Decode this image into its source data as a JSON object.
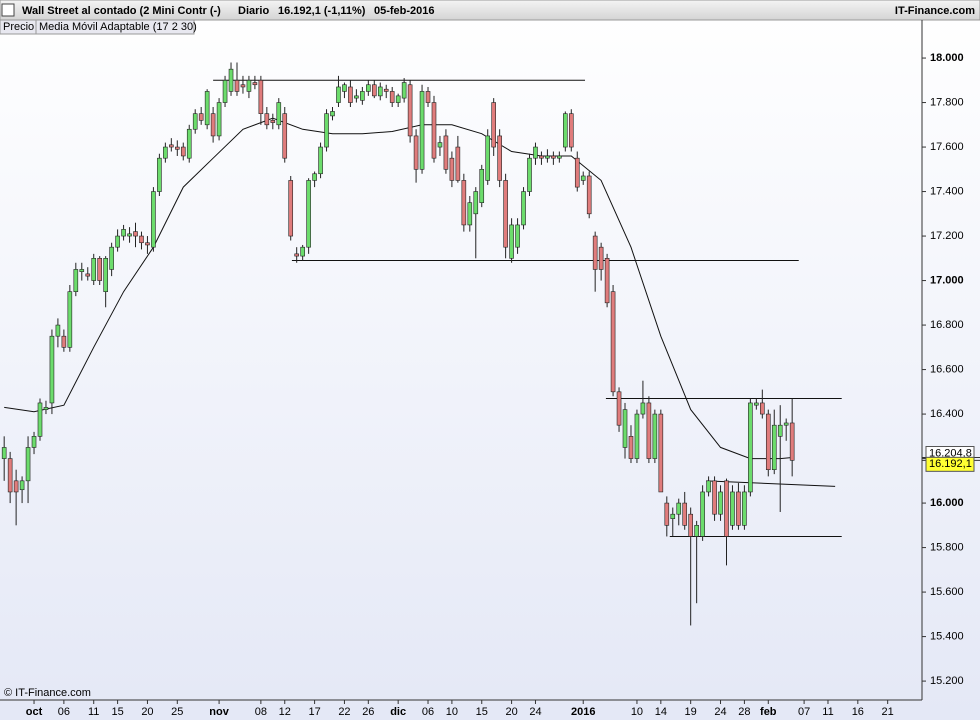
{
  "header": {
    "title": "Wall Street al contado (2 Mini Contr (-)",
    "period": "Diario",
    "last": "16.192,1 (-1,11%)",
    "date": "05-feb-2016",
    "brand": "IT-Finance.com"
  },
  "chart_data": {
    "type": "candlestick",
    "source": "© IT-Finance.com",
    "xlim": [
      -5.7,
      148.75
    ],
    "ylim": [
      15115,
      18171
    ],
    "xticks": [
      {
        "value": 0,
        "label": "oct"
      },
      {
        "value": 5,
        "label": "06"
      },
      {
        "value": 10,
        "label": "11"
      },
      {
        "value": 14,
        "label": "15"
      },
      {
        "value": 19,
        "label": "20"
      },
      {
        "value": 24,
        "label": "25"
      },
      {
        "value": 31,
        "label": "nov"
      },
      {
        "value": 38,
        "label": "08"
      },
      {
        "value": 42,
        "label": "12"
      },
      {
        "value": 47,
        "label": "17"
      },
      {
        "value": 52,
        "label": "22"
      },
      {
        "value": 56,
        "label": "26"
      },
      {
        "value": 61,
        "label": "dic"
      },
      {
        "value": 66,
        "label": "06"
      },
      {
        "value": 70,
        "label": "10"
      },
      {
        "value": 75,
        "label": "15"
      },
      {
        "value": 80,
        "label": "20"
      },
      {
        "value": 84,
        "label": "24"
      },
      {
        "value": 92,
        "label": "2016"
      },
      {
        "value": 101,
        "label": "10"
      },
      {
        "value": 105,
        "label": "14"
      },
      {
        "value": 110,
        "label": "19"
      },
      {
        "value": 115,
        "label": "24"
      },
      {
        "value": 119,
        "label": "28"
      },
      {
        "value": 123,
        "label": "feb"
      },
      {
        "value": 129,
        "label": "07"
      },
      {
        "value": 133,
        "label": "11"
      },
      {
        "value": 138,
        "label": "16"
      },
      {
        "value": 143,
        "label": "21"
      }
    ],
    "yticks": [
      {
        "value": 15200,
        "label": "15.200"
      },
      {
        "value": 15400,
        "label": "15.400"
      },
      {
        "value": 15600,
        "label": "15.600"
      },
      {
        "value": 15800,
        "label": "15.800"
      },
      {
        "value": 16000,
        "label": "16.000"
      },
      {
        "value": 16200,
        "label": "16.200"
      },
      {
        "value": 16400,
        "label": "16.400"
      },
      {
        "value": 16600,
        "label": "16.600"
      },
      {
        "value": 16800,
        "label": "16.800"
      },
      {
        "value": 17000,
        "label": "17.000"
      },
      {
        "value": 17200,
        "label": "17.200"
      },
      {
        "value": 17400,
        "label": "17.400"
      },
      {
        "value": 17600,
        "label": "17.600"
      },
      {
        "value": 17800,
        "label": "17.800"
      },
      {
        "value": 18000,
        "label": "18.000"
      }
    ],
    "candles": {
      "name": "Precio",
      "up_color": "#6cdc6c",
      "down_color": "#e07c7c",
      "x": [
        -5,
        -4,
        -3,
        -2,
        -1,
        0,
        1,
        2,
        3,
        4,
        5,
        6,
        7,
        8,
        9,
        10,
        11,
        12,
        13,
        14,
        15,
        16,
        17,
        18,
        19,
        20,
        21,
        22,
        23,
        24,
        25,
        26,
        27,
        28,
        29,
        30,
        31,
        32,
        33,
        34,
        35,
        36,
        37,
        38,
        39,
        40,
        41,
        42,
        43,
        44,
        45,
        46,
        47,
        48,
        49,
        50,
        51,
        52,
        53,
        54,
        55,
        56,
        57,
        58,
        59,
        60,
        61,
        62,
        63,
        64,
        65,
        66,
        67,
        68,
        69,
        70,
        71,
        72,
        73,
        74,
        75,
        76,
        77,
        78,
        79,
        80,
        81,
        82,
        83,
        84,
        85,
        86,
        87,
        88,
        89,
        90,
        91,
        92,
        93,
        94,
        95,
        96,
        97,
        98,
        99,
        100,
        101,
        102,
        103,
        104,
        105,
        106,
        107,
        108,
        109,
        110,
        111,
        112,
        113,
        114,
        115,
        116,
        117,
        118,
        119,
        120,
        121,
        122,
        123,
        124,
        125,
        126,
        127
      ],
      "open": [
        16200,
        16200,
        16100,
        16060,
        16100,
        16250,
        16300,
        16420,
        16450,
        16750,
        16750,
        16700,
        16950,
        17040,
        17030,
        17000,
        17100,
        16950,
        17050,
        17150,
        17200,
        17200,
        17220,
        17200,
        17170,
        17150,
        17400,
        17550,
        17610,
        17600,
        17600,
        17550,
        17680,
        17750,
        17700,
        17750,
        17650,
        17800,
        17850,
        17900,
        17880,
        17850,
        17890,
        17900,
        17750,
        17720,
        17700,
        17750,
        17450,
        17120,
        17110,
        17150,
        17450,
        17480,
        17600,
        17740,
        17800,
        17850,
        17870,
        17820,
        17810,
        17850,
        17880,
        17830,
        17860,
        17850,
        17800,
        17820,
        17880,
        17650,
        17500,
        17850,
        17800,
        17600,
        17650,
        17550,
        17600,
        17450,
        17250,
        17300,
        17350,
        17450,
        17800,
        17650,
        17450,
        17100,
        17150,
        17250,
        17400,
        17550,
        17560,
        17550,
        17560,
        17550,
        17600,
        17750,
        17550,
        17450,
        17470,
        17200,
        17150,
        17100,
        16950,
        16500,
        16250,
        16300,
        16200,
        16400,
        16450,
        16200,
        16400,
        16000,
        15930,
        15950,
        16000,
        15950,
        15850,
        15850,
        16050,
        16100,
        15950,
        16100,
        15900,
        16050,
        15900,
        16050,
        16440,
        16450,
        16400,
        16150,
        16300,
        16350,
        16360
      ],
      "high": [
        16300,
        16230,
        16150,
        16120,
        16300,
        16320,
        16470,
        16460,
        16780,
        16830,
        16780,
        16980,
        17080,
        17080,
        17060,
        17120,
        17110,
        17110,
        17170,
        17230,
        17250,
        17240,
        17260,
        17220,
        17200,
        17420,
        17570,
        17620,
        17640,
        17630,
        17620,
        17700,
        17770,
        17780,
        17860,
        17780,
        17820,
        17920,
        17980,
        17980,
        17920,
        17920,
        17920,
        17920,
        17780,
        17750,
        17820,
        17780,
        17470,
        17150,
        17160,
        17460,
        17490,
        17620,
        17770,
        17780,
        17920,
        17890,
        17900,
        17860,
        17870,
        17900,
        17900,
        17890,
        17880,
        17870,
        17840,
        17910,
        17900,
        17680,
        17880,
        17870,
        17830,
        17650,
        17680,
        17580,
        17650,
        17480,
        17380,
        17420,
        17520,
        17680,
        17820,
        17680,
        17480,
        17280,
        17280,
        17420,
        17570,
        17620,
        17580,
        17590,
        17580,
        17580,
        17760,
        17770,
        17580,
        17490,
        17490,
        17220,
        17170,
        17120,
        16980,
        16520,
        16450,
        16350,
        16420,
        16550,
        16480,
        16420,
        16420,
        16030,
        15980,
        16020,
        16050,
        15980,
        15920,
        16080,
        16120,
        16120,
        16080,
        16110,
        16080,
        16090,
        16080,
        16470,
        16470,
        16510,
        16420,
        16420,
        16440,
        16380,
        16470
      ],
      "low": [
        16100,
        16000,
        15900,
        16000,
        16000,
        16220,
        16280,
        16400,
        16400,
        16700,
        16680,
        16680,
        16930,
        17000,
        17000,
        16980,
        16980,
        16880,
        17020,
        17130,
        17180,
        17170,
        17150,
        17140,
        17120,
        17130,
        17380,
        17530,
        17580,
        17560,
        17540,
        17530,
        17660,
        17700,
        17680,
        17620,
        17630,
        17780,
        17830,
        17830,
        17840,
        17820,
        17860,
        17700,
        17680,
        17680,
        17680,
        17530,
        17180,
        17080,
        17090,
        17120,
        17420,
        17460,
        17580,
        17720,
        17780,
        17820,
        17780,
        17800,
        17790,
        17830,
        17820,
        17810,
        17820,
        17780,
        17780,
        17800,
        17620,
        17440,
        17480,
        17780,
        17530,
        17560,
        17480,
        17420,
        17440,
        17220,
        17220,
        17100,
        17330,
        17430,
        17560,
        17420,
        17100,
        17080,
        17120,
        17230,
        17380,
        17520,
        17520,
        17530,
        17520,
        17530,
        17580,
        17580,
        17400,
        17430,
        17280,
        16950,
        17000,
        16880,
        16480,
        16320,
        16200,
        16180,
        16180,
        16380,
        16180,
        16180,
        16050,
        15850,
        15850,
        15900,
        15880,
        15450,
        15550,
        15830,
        16030,
        15920,
        15920,
        15720,
        15880,
        15880,
        15880,
        16030,
        16420,
        16380,
        16120,
        16130,
        15960,
        16280,
        16120
      ],
      "close": [
        16250,
        16050,
        16050,
        16100,
        16250,
        16300,
        16450,
        16430,
        16750,
        16800,
        16700,
        16950,
        17050,
        17050,
        17020,
        17100,
        17000,
        17100,
        17150,
        17200,
        17230,
        17210,
        17200,
        17170,
        17160,
        17400,
        17550,
        17600,
        17600,
        17590,
        17560,
        17680,
        17750,
        17720,
        17850,
        17650,
        17800,
        17900,
        17950,
        17850,
        17870,
        17900,
        17880,
        17750,
        17700,
        17710,
        17800,
        17550,
        17200,
        17110,
        17150,
        17450,
        17480,
        17600,
        17750,
        17760,
        17870,
        17880,
        17800,
        17830,
        17850,
        17880,
        17830,
        17870,
        17850,
        17800,
        17830,
        17890,
        17650,
        17500,
        17850,
        17800,
        17550,
        17620,
        17500,
        17450,
        17450,
        17250,
        17350,
        17400,
        17500,
        17650,
        17600,
        17450,
        17150,
        17250,
        17250,
        17400,
        17550,
        17600,
        17550,
        17560,
        17550,
        17560,
        17750,
        17600,
        17420,
        17470,
        17300,
        17050,
        17050,
        16900,
        16500,
        16350,
        16420,
        16200,
        16400,
        16450,
        16200,
        16400,
        16050,
        15900,
        15950,
        16000,
        15900,
        15850,
        15900,
        16050,
        16100,
        15950,
        16050,
        15850,
        16050,
        15900,
        16050,
        16450,
        16450,
        16400,
        16150,
        16350,
        16350,
        16360,
        16192.1
      ]
    },
    "series": [
      {
        "name": "Media Móvil Adaptable (17 2 30)",
        "color": "#111111",
        "x": [
          -5,
          0,
          5,
          10,
          15,
          20,
          25,
          30,
          35,
          40,
          45,
          50,
          55,
          60,
          65,
          70,
          75,
          80,
          85,
          90,
          95,
          100,
          105,
          110,
          115,
          120,
          125,
          127
        ],
        "values": [
          16430,
          16410,
          16440,
          16700,
          16950,
          17150,
          17420,
          17550,
          17680,
          17730,
          17680,
          17660,
          17660,
          17670,
          17700,
          17700,
          17660,
          17580,
          17560,
          17560,
          17450,
          17150,
          16750,
          16420,
          16250,
          16200,
          16200,
          16205
        ]
      }
    ],
    "lines": [
      {
        "x": [
          30,
          92.3
        ],
        "values": [
          17900,
          17900
        ]
      },
      {
        "x": [
          43.2,
          128.1
        ],
        "values": [
          17090,
          17090
        ]
      },
      {
        "x": [
          95.8,
          135.3
        ],
        "values": [
          16470,
          16470
        ]
      },
      {
        "x": [
          112.6,
          134.2
        ],
        "values": [
          16100,
          16075
        ]
      },
      {
        "x": [
          106.5,
          135.3
        ],
        "values": [
          15850,
          15850
        ]
      }
    ],
    "price_markers": [
      {
        "value": 16204.8,
        "label": "16.204,8",
        "color": "#ffffff"
      },
      {
        "value": 16192.1,
        "label": "16.192,1",
        "color": "#ffff33"
      }
    ]
  }
}
